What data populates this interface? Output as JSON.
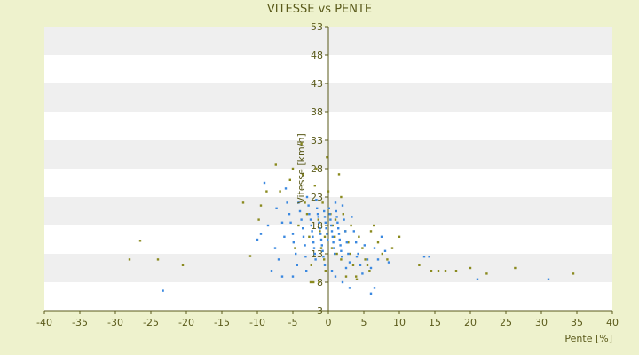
{
  "chart_data": {
    "type": "scatter",
    "title": "VITESSE vs PENTE",
    "xlabel": "Pente [%]",
    "ylabel": "Vitesse [km/h]",
    "xlim": [
      -40,
      40
    ],
    "ylim": [
      3,
      53
    ],
    "x_ticks": [
      "-40",
      "-35",
      "-30",
      "-25",
      "-20",
      "-15",
      "-10",
      "-5",
      "0",
      "5",
      "10",
      "15",
      "20",
      "25",
      "30",
      "35",
      "40"
    ],
    "y_ticks": [
      "3",
      "8",
      "13",
      "18",
      "23",
      "28",
      "33",
      "38",
      "43",
      "48",
      "53"
    ],
    "grid": "alternating horizontal bands",
    "legend": "none",
    "colors": {
      "series_a": "#8a8a1e",
      "series_b": "#3a88e0",
      "band": "#efefef",
      "plot_bg": "#ffffff",
      "axis": "#5a5a1a"
    },
    "series": [
      {
        "points": [
          [
            -28,
            12
          ],
          [
            -26.5,
            15.3
          ],
          [
            -24,
            12
          ],
          [
            -20.5,
            11
          ],
          [
            -12,
            22
          ],
          [
            -11,
            12.6
          ],
          [
            -9.8,
            19
          ],
          [
            -9.5,
            21.5
          ],
          [
            -8.7,
            24
          ],
          [
            -7.4,
            28.7
          ],
          [
            -6.8,
            24
          ],
          [
            -5.4,
            26
          ],
          [
            -5,
            28
          ],
          [
            -4.7,
            14
          ],
          [
            -4.2,
            18
          ],
          [
            -3.8,
            32.4
          ],
          [
            -3.6,
            27
          ],
          [
            -3.3,
            22
          ],
          [
            -3,
            20
          ],
          [
            -2.7,
            16
          ],
          [
            -2.4,
            11
          ],
          [
            -2.1,
            8
          ],
          [
            -1.9,
            25
          ],
          [
            -1.7,
            28
          ],
          [
            -1.4,
            19
          ],
          [
            -1.2,
            17
          ],
          [
            -1,
            14
          ],
          [
            -0.8,
            22
          ],
          [
            -0.6,
            12
          ],
          [
            -0.4,
            10
          ],
          [
            -0.2,
            30
          ],
          [
            0,
            24
          ],
          [
            0.3,
            20
          ],
          [
            0.6,
            18
          ],
          [
            0.9,
            16
          ],
          [
            1.2,
            13
          ],
          [
            1.5,
            27
          ],
          [
            1.8,
            23
          ],
          [
            2.1,
            20
          ],
          [
            2.4,
            17
          ],
          [
            2.8,
            15
          ],
          [
            3.1,
            13
          ],
          [
            3.5,
            11
          ],
          [
            3.9,
            9
          ],
          [
            4.3,
            16
          ],
          [
            4.8,
            14
          ],
          [
            5.2,
            12
          ],
          [
            5.8,
            10
          ],
          [
            6.4,
            18
          ],
          [
            7,
            15
          ],
          [
            7.6,
            13
          ],
          [
            8.3,
            12
          ],
          [
            9,
            14
          ],
          [
            10,
            16
          ],
          [
            12.8,
            11
          ],
          [
            14.5,
            10
          ],
          [
            15.5,
            10
          ],
          [
            16.5,
            10
          ],
          [
            18,
            10
          ],
          [
            20,
            10.5
          ],
          [
            22.3,
            9.5
          ],
          [
            26.3,
            10.5
          ],
          [
            34.5,
            9.5
          ],
          [
            -2.5,
            8
          ],
          [
            -1.3,
            8
          ],
          [
            -0.5,
            16
          ],
          [
            0.5,
            14
          ],
          [
            1,
            19
          ],
          [
            1.8,
            12
          ],
          [
            2.5,
            9
          ],
          [
            3.2,
            18
          ],
          [
            4,
            8.5
          ],
          [
            5.5,
            11
          ],
          [
            6,
            17
          ]
        ]
      },
      {
        "points": [
          [
            -23.3,
            6.5
          ],
          [
            -10,
            15.5
          ],
          [
            -9.5,
            16.5
          ],
          [
            -9,
            25.5
          ],
          [
            -8.5,
            18
          ],
          [
            -8,
            10
          ],
          [
            -7.5,
            14
          ],
          [
            -7.3,
            21
          ],
          [
            -7,
            12
          ],
          [
            -6.5,
            18.5
          ],
          [
            -6.2,
            16
          ],
          [
            -6,
            24.5
          ],
          [
            -5.8,
            22
          ],
          [
            -5.5,
            20
          ],
          [
            -5.3,
            18.5
          ],
          [
            -5,
            16.5
          ],
          [
            -4.9,
            15
          ],
          [
            -4.6,
            13
          ],
          [
            -4.4,
            11
          ],
          [
            -4.2,
            22
          ],
          [
            -4,
            20.5
          ],
          [
            -3.8,
            19
          ],
          [
            -3.6,
            17.5
          ],
          [
            -3.5,
            16
          ],
          [
            -3.3,
            14.5
          ],
          [
            -3.2,
            12.5
          ],
          [
            -3.1,
            10
          ],
          [
            -3,
            23
          ],
          [
            -2.8,
            21.5
          ],
          [
            -2.7,
            20
          ],
          [
            -2.5,
            19
          ],
          [
            -2.4,
            18
          ],
          [
            -2.3,
            17
          ],
          [
            -2.2,
            16
          ],
          [
            -2.1,
            15
          ],
          [
            -2,
            14
          ],
          [
            -1.9,
            13
          ],
          [
            -1.8,
            12
          ],
          [
            -1.7,
            22.5
          ],
          [
            -1.6,
            21
          ],
          [
            -1.5,
            20
          ],
          [
            -1.4,
            19.5
          ],
          [
            -1.3,
            18.5
          ],
          [
            -1.2,
            17.5
          ],
          [
            -1.1,
            16.5
          ],
          [
            -1,
            15.5
          ],
          [
            -0.9,
            14.5
          ],
          [
            -0.8,
            13.5
          ],
          [
            -0.7,
            12.5
          ],
          [
            -0.6,
            20.5
          ],
          [
            -0.5,
            19.5
          ],
          [
            -0.4,
            18.5
          ],
          [
            -0.3,
            17.5
          ],
          [
            -0.2,
            16.5
          ],
          [
            -0.1,
            15.5
          ],
          [
            0.1,
            21
          ],
          [
            0.2,
            20
          ],
          [
            0.3,
            19
          ],
          [
            0.4,
            18
          ],
          [
            0.5,
            17
          ],
          [
            0.6,
            16
          ],
          [
            0.7,
            15
          ],
          [
            0.8,
            14
          ],
          [
            0.9,
            13
          ],
          [
            1,
            22
          ],
          [
            1.1,
            20.5
          ],
          [
            1.2,
            19.5
          ],
          [
            1.3,
            18.5
          ],
          [
            1.4,
            17.5
          ],
          [
            1.5,
            16.5
          ],
          [
            1.6,
            15.5
          ],
          [
            1.7,
            14.5
          ],
          [
            1.8,
            13.5
          ],
          [
            1.9,
            12.5
          ],
          [
            2,
            21.5
          ],
          [
            2.2,
            19
          ],
          [
            2.4,
            17
          ],
          [
            2.6,
            15
          ],
          [
            2.8,
            13
          ],
          [
            3,
            11.5
          ],
          [
            3.3,
            19.5
          ],
          [
            3.6,
            17
          ],
          [
            3.9,
            15
          ],
          [
            4.2,
            13
          ],
          [
            4.5,
            11
          ],
          [
            4.8,
            9.5
          ],
          [
            5.1,
            14.5
          ],
          [
            5.5,
            12
          ],
          [
            6,
            10.5
          ],
          [
            6.5,
            14
          ],
          [
            7,
            12
          ],
          [
            7.5,
            16
          ],
          [
            8,
            13.5
          ],
          [
            8.5,
            11.5
          ],
          [
            6,
            6
          ],
          [
            6.5,
            7
          ],
          [
            3,
            7
          ],
          [
            2,
            8
          ],
          [
            13.5,
            12.5
          ],
          [
            14.2,
            12.5
          ],
          [
            21,
            8.5
          ],
          [
            31,
            8.5
          ],
          [
            -6.5,
            9
          ],
          [
            -5,
            9
          ],
          [
            1,
            9
          ],
          [
            -0.5,
            11
          ],
          [
            0.5,
            10
          ],
          [
            2.5,
            10.5
          ],
          [
            4,
            12.5
          ]
        ]
      }
    ]
  }
}
